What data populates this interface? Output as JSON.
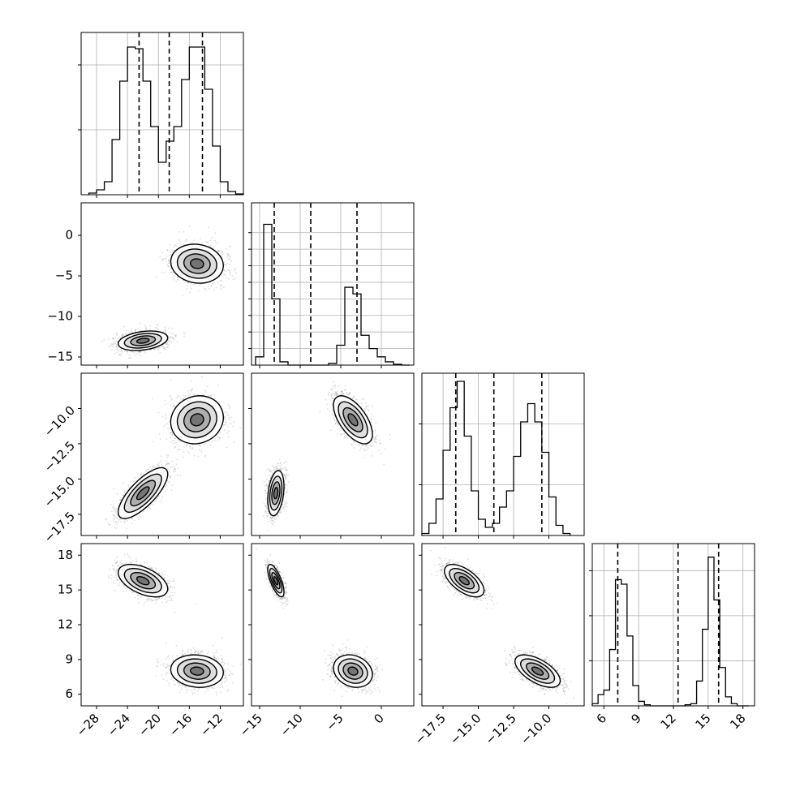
{
  "chart_data": {
    "type": "corner",
    "grid": true,
    "variables": [
      {
        "range": [
          -30,
          -9
        ],
        "ticks": [
          -28,
          -24,
          -20,
          -16,
          -12
        ],
        "tick_labels": [
          "−28",
          "−24",
          "−20",
          "−16",
          "−12"
        ],
        "modes": [
          {
            "mean": -22,
            "sd": 1.6
          },
          {
            "mean": -15,
            "sd": 1.7
          }
        ]
      },
      {
        "range": [
          -16,
          4
        ],
        "ticks": [
          -15,
          -10,
          -5,
          0
        ],
        "tick_labels": [
          "−15",
          "−10",
          "−5",
          "0"
        ],
        "modes": [
          {
            "mean": -13,
            "sd": 0.5
          },
          {
            "mean": -3.5,
            "sd": 1.2
          }
        ]
      },
      {
        "range": [
          -19,
          -7.5
        ],
        "ticks": [
          -17.5,
          -15.0,
          -12.5,
          -10.0
        ],
        "tick_labels": [
          "−17.5",
          "−15.0",
          "−12.5",
          "−10.0"
        ],
        "modes": [
          {
            "mean": -16,
            "sd": 0.7
          },
          {
            "mean": -10.8,
            "sd": 0.8
          }
        ]
      },
      {
        "range": [
          5,
          19
        ],
        "ticks": [
          6,
          9,
          12,
          15,
          18
        ],
        "tick_labels": [
          "6",
          "9",
          "12",
          "15",
          "18"
        ],
        "modes": [
          {
            "mean": 8,
            "sd": 0.6
          },
          {
            "mean": 15.8,
            "sd": 0.6
          }
        ]
      }
    ],
    "histograms": [
      {
        "var": 0,
        "bin_edges": [
          -29,
          -28,
          -27,
          -26,
          -25,
          -24,
          -23,
          -22,
          -21,
          -20,
          -19,
          -18,
          -17,
          -16,
          -15,
          -14,
          -13,
          -12,
          -11,
          -10,
          -9
        ],
        "counts": [
          0.01,
          0.03,
          0.08,
          0.34,
          0.7,
          0.91,
          0.9,
          0.7,
          0.42,
          0.2,
          0.33,
          0.42,
          0.71,
          0.91,
          0.91,
          0.65,
          0.3,
          0.08,
          0.02,
          0.005
        ],
        "quantiles": [
          -22.5,
          -18.6,
          -14.3
        ],
        "ylim": [
          0,
          1.0
        ],
        "yticks": [
          0.4,
          0.8
        ]
      },
      {
        "var": 1,
        "bin_edges": [
          -15.5,
          -14.5,
          -13.5,
          -12.5,
          -11.5,
          -10.5,
          -9.5,
          -8.5,
          -7.5,
          -6.5,
          -5.5,
          -4.5,
          -3.5,
          -2.5,
          -1.5,
          -0.5,
          0.5,
          1.5,
          2.5,
          3.5
        ],
        "counts": [
          0.05,
          0.85,
          0.4,
          0.02,
          0.0,
          0.0,
          0.0,
          0.0,
          0.0,
          0.01,
          0.12,
          0.47,
          0.43,
          0.18,
          0.1,
          0.05,
          0.02,
          0.005,
          0.0
        ],
        "quantiles": [
          -13.2,
          -8.7,
          -3.0
        ],
        "ylim": [
          0,
          0.98
        ],
        "yticks": [
          0.1,
          0.2,
          0.3,
          0.4,
          0.5,
          0.6,
          0.7,
          0.8
        ]
      },
      {
        "var": 2,
        "bin_edges": [
          -19,
          -18.5,
          -18,
          -17.5,
          -17,
          -16.5,
          -16,
          -15.5,
          -15,
          -14.5,
          -14,
          -13.5,
          -13,
          -12.5,
          -12,
          -11.5,
          -11,
          -10.5,
          -10,
          -9.5,
          -9,
          -8.5
        ],
        "counts": [
          0.01,
          0.06,
          0.18,
          0.42,
          0.63,
          0.76,
          0.49,
          0.22,
          0.08,
          0.04,
          0.06,
          0.14,
          0.22,
          0.39,
          0.56,
          0.65,
          0.56,
          0.41,
          0.19,
          0.05,
          0.01
        ],
        "quantiles": [
          -16.6,
          -13.9,
          -10.5
        ],
        "ylim": [
          0,
          0.8
        ],
        "yticks": [
          0.25,
          0.55
        ]
      },
      {
        "var": 3,
        "bin_edges": [
          5,
          5.5,
          6,
          6.5,
          7,
          7.5,
          8,
          8.5,
          9,
          9.5,
          10,
          10.5,
          11,
          11.5,
          12,
          12.5,
          13,
          13.5,
          14,
          14.5,
          15,
          15.5,
          16,
          16.5,
          17,
          17.5,
          18,
          18.5
        ],
        "counts": [
          0.01,
          0.05,
          0.07,
          0.25,
          0.56,
          0.54,
          0.31,
          0.09,
          0.02,
          0.005,
          0.0,
          0.0,
          0.0,
          0.0,
          0.0,
          0.0,
          0.005,
          0.01,
          0.11,
          0.34,
          0.66,
          0.47,
          0.17,
          0.04,
          0.01,
          0.0,
          0.0
        ],
        "quantiles": [
          7.2,
          12.4,
          15.9
        ],
        "ylim": [
          0,
          0.72
        ],
        "yticks": [
          0.2,
          0.4,
          0.6
        ]
      }
    ],
    "pairs": [
      {
        "x": 0,
        "y": 1,
        "clusters": [
          {
            "mx": -22,
            "my": -13,
            "sx": 1.6,
            "sy": 0.6,
            "rho": 0.3
          },
          {
            "mx": -15,
            "my": -3.5,
            "sx": 1.7,
            "sy": 1.2,
            "rho": -0.1
          }
        ]
      },
      {
        "x": 0,
        "y": 2,
        "clusters": [
          {
            "mx": -22,
            "my": -16,
            "sx": 1.6,
            "sy": 0.9,
            "rho": 0.75
          },
          {
            "mx": -15,
            "my": -10.8,
            "sx": 1.7,
            "sy": 0.85,
            "rho": 0.1
          }
        ]
      },
      {
        "x": 1,
        "y": 2,
        "clusters": [
          {
            "mx": -13,
            "my": -16,
            "sx": 0.5,
            "sy": 0.8,
            "rho": 0.3
          },
          {
            "mx": -3.5,
            "my": -10.8,
            "sx": 1.2,
            "sy": 0.85,
            "rho": -0.6
          }
        ]
      },
      {
        "x": 0,
        "y": 3,
        "clusters": [
          {
            "mx": -22,
            "my": 15.8,
            "sx": 1.6,
            "sy": 0.7,
            "rho": -0.5
          },
          {
            "mx": -15,
            "my": 8,
            "sx": 1.7,
            "sy": 0.7,
            "rho": -0.1
          }
        ]
      },
      {
        "x": 1,
        "y": 3,
        "clusters": [
          {
            "mx": -13,
            "my": 15.8,
            "sx": 0.5,
            "sy": 0.7,
            "rho": -0.7
          },
          {
            "mx": -3.5,
            "my": 8,
            "sx": 1.2,
            "sy": 0.7,
            "rho": -0.2
          }
        ]
      },
      {
        "x": 2,
        "y": 3,
        "clusters": [
          {
            "mx": -16,
            "my": 15.8,
            "sx": 0.7,
            "sy": 0.7,
            "rho": -0.6
          },
          {
            "mx": -10.8,
            "my": 8,
            "sx": 0.8,
            "sy": 0.7,
            "rho": -0.6
          }
        ]
      }
    ]
  }
}
